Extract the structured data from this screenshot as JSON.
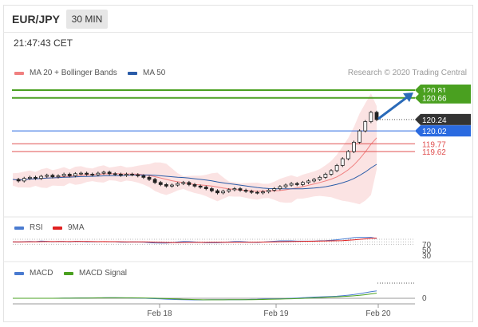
{
  "header": {
    "pair": "EUR/JPY",
    "timeframe": "30 MIN"
  },
  "clock": "21:47:43 CET",
  "legend_main": [
    {
      "label": "MA 20 + Bollinger Bands",
      "color": "#f08080"
    },
    {
      "label": "MA 50",
      "color": "#2a5ca8"
    }
  ],
  "credit": "Research © 2020 Trading Central",
  "legend_rsi": [
    {
      "label": "RSI",
      "color": "#4a7bd0"
    },
    {
      "label": "9MA",
      "color": "#e02020"
    }
  ],
  "legend_macd": [
    {
      "label": "MACD",
      "color": "#4a7bd0"
    },
    {
      "label": "MACD Signal",
      "color": "#4aa020"
    }
  ],
  "colors": {
    "target": "#4aa020",
    "pivot": "#2a6ae0",
    "support": "#e05050",
    "last": "#333333",
    "arrow": "#2a6ab8"
  },
  "chart_data": {
    "type": "candlestick",
    "levels": [
      {
        "value": 120.81,
        "label": "120.81",
        "kind": "target"
      },
      {
        "value": 120.66,
        "label": "120.66",
        "kind": "target"
      },
      {
        "value": 120.24,
        "label": "120.24",
        "kind": "last"
      },
      {
        "value": 120.02,
        "label": "120.02",
        "kind": "pivot"
      },
      {
        "value": 119.77,
        "label": "119.77",
        "kind": "support"
      },
      {
        "value": 119.62,
        "label": "119.62",
        "kind": "support"
      }
    ],
    "x_ticks": [
      "Feb 18",
      "Feb 19",
      "Feb 20"
    ],
    "rsi_ticks": [
      "70",
      "50",
      "30"
    ],
    "macd_ticks": [
      "0"
    ],
    "close_path": [
      119.08,
      119.05,
      119.1,
      119.12,
      119.1,
      119.14,
      119.16,
      119.13,
      119.15,
      119.18,
      119.15,
      119.19,
      119.2,
      119.18,
      119.17,
      119.2,
      119.22,
      119.19,
      119.18,
      119.16,
      119.18,
      119.17,
      119.15,
      119.12,
      119.08,
      119.02,
      118.98,
      118.95,
      118.97,
      119.0,
      119.02,
      118.98,
      118.95,
      118.93,
      118.9,
      118.86,
      118.82,
      118.85,
      118.88,
      118.9,
      118.87,
      118.85,
      118.83,
      118.82,
      118.84,
      118.87,
      118.9,
      118.94,
      118.97,
      119.0,
      118.98,
      119.02,
      119.05,
      119.08,
      119.12,
      119.18,
      119.25,
      119.35,
      119.48,
      119.62,
      119.8,
      120.02,
      120.2,
      120.38,
      120.24
    ]
  }
}
